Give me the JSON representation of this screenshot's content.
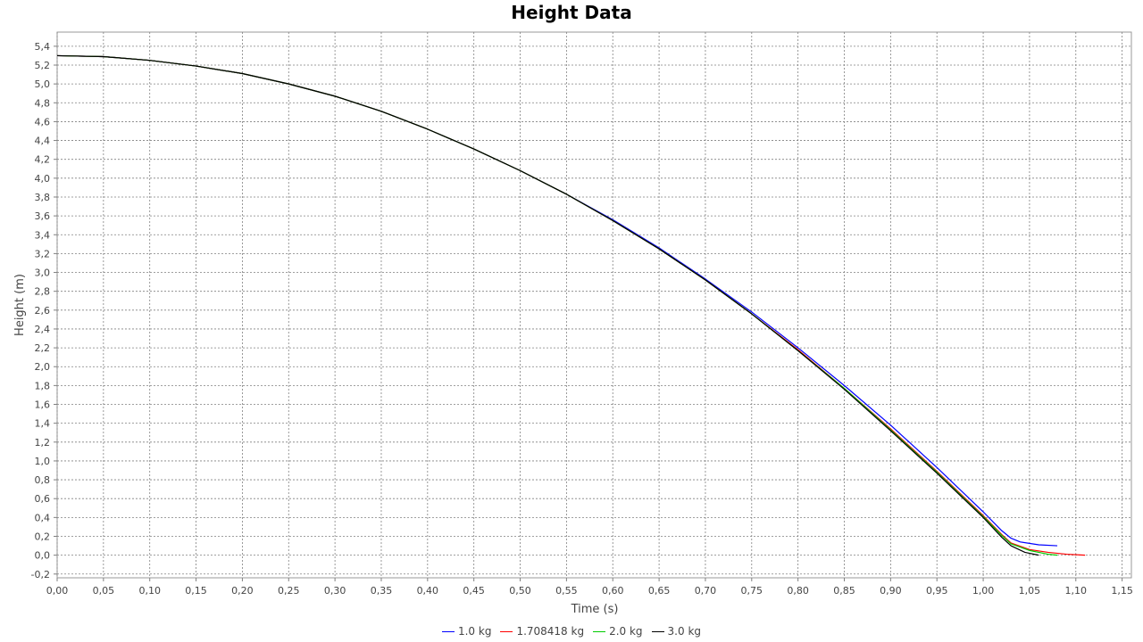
{
  "chart_data": {
    "type": "line",
    "title": "Height Data",
    "xlabel": "Time (s)",
    "ylabel": "Height (m)",
    "xlim": [
      0.0,
      1.16
    ],
    "ylim": [
      -0.24,
      5.55
    ],
    "grid": true,
    "legend_position": "bottom",
    "x_ticks": [
      "0,00",
      "0,05",
      "0,10",
      "0,15",
      "0,20",
      "0,25",
      "0,30",
      "0,35",
      "0,40",
      "0,45",
      "0,50",
      "0,55",
      "0,60",
      "0,65",
      "0,70",
      "0,75",
      "0,80",
      "0,85",
      "0,90",
      "0,95",
      "1,00",
      "1,05",
      "1,10",
      "1,15"
    ],
    "y_ticks": [
      "-0,2",
      "0,0",
      "0,2",
      "0,4",
      "0,6",
      "0,8",
      "1,0",
      "1,2",
      "1,4",
      "1,6",
      "1,8",
      "2,0",
      "2,2",
      "2,4",
      "2,6",
      "2,8",
      "3,0",
      "3,2",
      "3,4",
      "3,6",
      "3,8",
      "4,0",
      "4,2",
      "4,4",
      "4,6",
      "4,8",
      "5,0",
      "5,2",
      "5,4"
    ],
    "series": [
      {
        "name": "1.0 kg",
        "color": "#0000ff",
        "points": [
          [
            0.0,
            5.3
          ],
          [
            0.05,
            5.29
          ],
          [
            0.1,
            5.25
          ],
          [
            0.15,
            5.19
          ],
          [
            0.2,
            5.11
          ],
          [
            0.25,
            5.0
          ],
          [
            0.3,
            4.87
          ],
          [
            0.35,
            4.71
          ],
          [
            0.4,
            4.52
          ],
          [
            0.45,
            4.31
          ],
          [
            0.5,
            4.08
          ],
          [
            0.55,
            3.83
          ],
          [
            0.6,
            3.56
          ],
          [
            0.65,
            3.26
          ],
          [
            0.7,
            2.93
          ],
          [
            0.75,
            2.58
          ],
          [
            0.8,
            2.2
          ],
          [
            0.85,
            1.8
          ],
          [
            0.9,
            1.38
          ],
          [
            0.95,
            0.93
          ],
          [
            1.0,
            0.46
          ],
          [
            1.02,
            0.26
          ],
          [
            1.03,
            0.18
          ],
          [
            1.04,
            0.14
          ],
          [
            1.06,
            0.11
          ],
          [
            1.08,
            0.1
          ]
        ]
      },
      {
        "name": "1.708418 kg",
        "color": "#ff0000",
        "points": [
          [
            0.0,
            5.3
          ],
          [
            0.05,
            5.29
          ],
          [
            0.1,
            5.25
          ],
          [
            0.15,
            5.19
          ],
          [
            0.2,
            5.11
          ],
          [
            0.25,
            5.0
          ],
          [
            0.3,
            4.87
          ],
          [
            0.35,
            4.71
          ],
          [
            0.4,
            4.52
          ],
          [
            0.45,
            4.31
          ],
          [
            0.5,
            4.08
          ],
          [
            0.55,
            3.83
          ],
          [
            0.6,
            3.55
          ],
          [
            0.65,
            3.25
          ],
          [
            0.7,
            2.92
          ],
          [
            0.75,
            2.56
          ],
          [
            0.8,
            2.18
          ],
          [
            0.85,
            1.77
          ],
          [
            0.9,
            1.34
          ],
          [
            0.95,
            0.89
          ],
          [
            1.0,
            0.42
          ],
          [
            1.02,
            0.22
          ],
          [
            1.03,
            0.13
          ],
          [
            1.05,
            0.06
          ],
          [
            1.07,
            0.03
          ],
          [
            1.09,
            0.01
          ],
          [
            1.11,
            0.0
          ]
        ]
      },
      {
        "name": "2.0 kg",
        "color": "#00cc00",
        "points": [
          [
            0.0,
            5.3
          ],
          [
            0.05,
            5.29
          ],
          [
            0.1,
            5.25
          ],
          [
            0.15,
            5.19
          ],
          [
            0.2,
            5.11
          ],
          [
            0.25,
            5.0
          ],
          [
            0.3,
            4.87
          ],
          [
            0.35,
            4.71
          ],
          [
            0.4,
            4.52
          ],
          [
            0.45,
            4.31
          ],
          [
            0.5,
            4.08
          ],
          [
            0.55,
            3.83
          ],
          [
            0.6,
            3.55
          ],
          [
            0.65,
            3.25
          ],
          [
            0.7,
            2.92
          ],
          [
            0.75,
            2.56
          ],
          [
            0.8,
            2.17
          ],
          [
            0.85,
            1.77
          ],
          [
            0.9,
            1.33
          ],
          [
            0.95,
            0.88
          ],
          [
            1.0,
            0.41
          ],
          [
            1.02,
            0.21
          ],
          [
            1.03,
            0.12
          ],
          [
            1.05,
            0.05
          ],
          [
            1.07,
            0.01
          ],
          [
            1.08,
            0.0
          ]
        ]
      },
      {
        "name": "3.0 kg",
        "color": "#000000",
        "points": [
          [
            0.0,
            5.3
          ],
          [
            0.05,
            5.29
          ],
          [
            0.1,
            5.25
          ],
          [
            0.15,
            5.19
          ],
          [
            0.2,
            5.11
          ],
          [
            0.25,
            5.0
          ],
          [
            0.3,
            4.87
          ],
          [
            0.35,
            4.71
          ],
          [
            0.4,
            4.52
          ],
          [
            0.45,
            4.31
          ],
          [
            0.5,
            4.08
          ],
          [
            0.55,
            3.83
          ],
          [
            0.6,
            3.55
          ],
          [
            0.65,
            3.25
          ],
          [
            0.7,
            2.92
          ],
          [
            0.75,
            2.56
          ],
          [
            0.8,
            2.17
          ],
          [
            0.85,
            1.76
          ],
          [
            0.9,
            1.32
          ],
          [
            0.95,
            0.87
          ],
          [
            1.0,
            0.4
          ],
          [
            1.02,
            0.19
          ],
          [
            1.03,
            0.1
          ],
          [
            1.045,
            0.03
          ],
          [
            1.06,
            0.0
          ]
        ]
      }
    ]
  }
}
